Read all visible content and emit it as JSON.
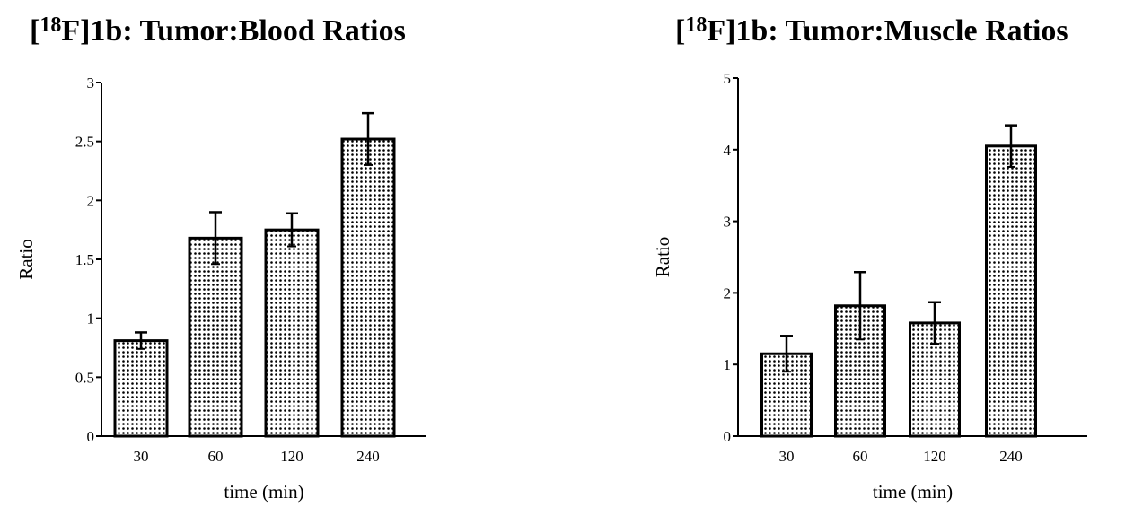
{
  "colors": {
    "ink": "#000000",
    "bar_fill": "#d9d9d9",
    "dot": "#000000",
    "background": "#ffffff"
  },
  "chart_data": [
    {
      "type": "bar",
      "title_prefix": "18",
      "title_main": "F]1b: Tumor:Blood Ratios",
      "title": "[18F]1b: Tumor:Blood Ratios",
      "xlabel": "time (min)",
      "ylabel": "Ratio",
      "categories": [
        "30",
        "60",
        "120",
        "240"
      ],
      "series": [
        {
          "values": [
            0.81,
            1.68,
            1.75,
            2.52
          ],
          "errors": [
            0.07,
            0.22,
            0.14,
            0.22
          ]
        }
      ],
      "ylim": [
        0,
        3
      ],
      "yticks": [
        "0",
        "0.5",
        "1",
        "1.5",
        "2",
        "2.5",
        "3"
      ],
      "grid": false,
      "bar_pattern": "dotted"
    },
    {
      "type": "bar",
      "title_prefix": "18",
      "title_main": "F]1b: Tumor:Muscle Ratios",
      "title": "[18F]1b: Tumor:Muscle Ratios",
      "xlabel": "time (min)",
      "ylabel": "Ratio",
      "categories": [
        "30",
        "60",
        "120",
        "240"
      ],
      "series": [
        {
          "values": [
            1.15,
            1.82,
            1.58,
            4.05
          ],
          "errors": [
            0.25,
            0.47,
            0.29,
            0.29
          ]
        }
      ],
      "ylim": [
        0,
        5
      ],
      "yticks": [
        "0",
        "1",
        "2",
        "3",
        "4",
        "5"
      ],
      "grid": false,
      "bar_pattern": "dotted"
    }
  ]
}
